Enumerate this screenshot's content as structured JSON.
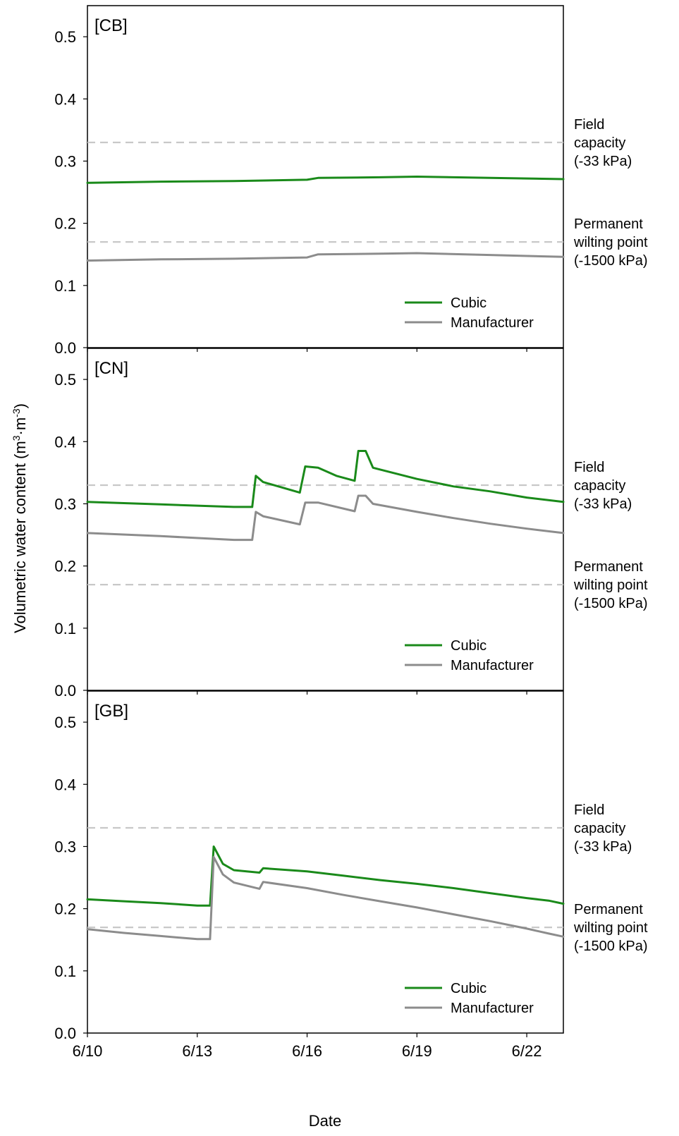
{
  "chart_data": {
    "type": "line",
    "xlabel": "Date",
    "ylabel_main": "Volumetric water content (m",
    "ylabel_sup1": "3",
    "ylabel_mid": "·m",
    "ylabel_sup2": "-3",
    "ylabel_end": ")",
    "xlim": [
      "6/10",
      "6/23"
    ],
    "ylim": [
      0.0,
      0.55
    ],
    "x_ticks": [
      "6/10",
      "6/13",
      "6/16",
      "6/19",
      "6/22"
    ],
    "y_ticks": [
      "0.0",
      "0.1",
      "0.2",
      "0.3",
      "0.4",
      "0.5"
    ],
    "colors": {
      "Cubic": "#1a8a1a",
      "Manufacturer": "#8c8c8c",
      "reference": "#c8c8c8"
    },
    "panels": [
      {
        "label": "[CB]",
        "reference_lines": [
          {
            "value": 0.33,
            "label": [
              "Field",
              "capacity",
              "(-33 kPa)"
            ]
          },
          {
            "value": 0.17,
            "label": [
              "Permanent",
              "wilting point",
              "(-1500 kPa)"
            ]
          }
        ],
        "series": [
          {
            "name": "Cubic",
            "points": [
              [
                "6/10",
                0.265
              ],
              [
                "6/12",
                0.267
              ],
              [
                "6/14",
                0.268
              ],
              [
                "6/16",
                0.27
              ],
              [
                "6/16.3",
                0.273
              ],
              [
                "6/18",
                0.274
              ],
              [
                "6/19",
                0.275
              ],
              [
                "6/21",
                0.273
              ],
              [
                "6/23",
                0.271
              ]
            ]
          },
          {
            "name": "Manufacturer",
            "points": [
              [
                "6/10",
                0.14
              ],
              [
                "6/12",
                0.142
              ],
              [
                "6/14",
                0.143
              ],
              [
                "6/16",
                0.145
              ],
              [
                "6/16.3",
                0.15
              ],
              [
                "6/18",
                0.151
              ],
              [
                "6/19",
                0.152
              ],
              [
                "6/21",
                0.149
              ],
              [
                "6/23",
                0.146
              ]
            ]
          }
        ]
      },
      {
        "label": "[CN]",
        "reference_lines": [
          {
            "value": 0.33,
            "label": [
              "Field",
              "capacity",
              "(-33 kPa)"
            ]
          },
          {
            "value": 0.17,
            "label": [
              "Permanent",
              "wilting point",
              "(-1500 kPa)"
            ]
          }
        ],
        "series": [
          {
            "name": "Cubic",
            "points": [
              [
                "6/10",
                0.303
              ],
              [
                "6/12",
                0.299
              ],
              [
                "6/14",
                0.295
              ],
              [
                "6/14.5",
                0.295
              ],
              [
                "6/14.6",
                0.345
              ],
              [
                "6/14.8",
                0.335
              ],
              [
                "6/15.8",
                0.318
              ],
              [
                "6/15.95",
                0.36
              ],
              [
                "6/16.3",
                0.358
              ],
              [
                "6/16.8",
                0.345
              ],
              [
                "6/17.3",
                0.337
              ],
              [
                "6/17.4",
                0.385
              ],
              [
                "6/17.6",
                0.385
              ],
              [
                "6/17.8",
                0.358
              ],
              [
                "6/19",
                0.34
              ],
              [
                "6/20",
                0.328
              ],
              [
                "6/21",
                0.32
              ],
              [
                "6/22",
                0.31
              ],
              [
                "6/23",
                0.303
              ]
            ]
          },
          {
            "name": "Manufacturer",
            "points": [
              [
                "6/10",
                0.253
              ],
              [
                "6/12",
                0.248
              ],
              [
                "6/14",
                0.242
              ],
              [
                "6/14.5",
                0.242
              ],
              [
                "6/14.6",
                0.287
              ],
              [
                "6/14.8",
                0.28
              ],
              [
                "6/15.8",
                0.267
              ],
              [
                "6/15.95",
                0.302
              ],
              [
                "6/16.3",
                0.302
              ],
              [
                "6/17.3",
                0.288
              ],
              [
                "6/17.4",
                0.313
              ],
              [
                "6/17.6",
                0.313
              ],
              [
                "6/17.8",
                0.3
              ],
              [
                "6/19",
                0.287
              ],
              [
                "6/20",
                0.277
              ],
              [
                "6/21",
                0.268
              ],
              [
                "6/22",
                0.26
              ],
              [
                "6/23",
                0.253
              ]
            ]
          }
        ]
      },
      {
        "label": "[GB]",
        "reference_lines": [
          {
            "value": 0.33,
            "label": [
              "Field",
              "capacity",
              "(-33 kPa)"
            ]
          },
          {
            "value": 0.17,
            "label": [
              "Permanent",
              "wilting point",
              "(-1500 kPa)"
            ]
          }
        ],
        "series": [
          {
            "name": "Cubic",
            "points": [
              [
                "6/10",
                0.215
              ],
              [
                "6/11",
                0.212
              ],
              [
                "6/12",
                0.209
              ],
              [
                "6/13",
                0.205
              ],
              [
                "6/13.35",
                0.205
              ],
              [
                "6/13.45",
                0.3
              ],
              [
                "6/13.7",
                0.272
              ],
              [
                "6/14",
                0.262
              ],
              [
                "6/14.7",
                0.258
              ],
              [
                "6/14.8",
                0.265
              ],
              [
                "6/16",
                0.26
              ],
              [
                "6/17",
                0.253
              ],
              [
                "6/18",
                0.246
              ],
              [
                "6/19",
                0.24
              ],
              [
                "6/20",
                0.233
              ],
              [
                "6/21",
                0.225
              ],
              [
                "6/22",
                0.217
              ],
              [
                "6/22.6",
                0.213
              ],
              [
                "6/23",
                0.208
              ]
            ]
          },
          {
            "name": "Manufacturer",
            "points": [
              [
                "6/10",
                0.167
              ],
              [
                "6/11",
                0.161
              ],
              [
                "6/12",
                0.156
              ],
              [
                "6/13",
                0.151
              ],
              [
                "6/13.35",
                0.151
              ],
              [
                "6/13.45",
                0.283
              ],
              [
                "6/13.7",
                0.255
              ],
              [
                "6/14",
                0.242
              ],
              [
                "6/14.7",
                0.232
              ],
              [
                "6/14.8",
                0.243
              ],
              [
                "6/16",
                0.233
              ],
              [
                "6/17",
                0.222
              ],
              [
                "6/18",
                0.212
              ],
              [
                "6/19",
                0.202
              ],
              [
                "6/20",
                0.191
              ],
              [
                "6/21",
                0.18
              ],
              [
                "6/22",
                0.168
              ],
              [
                "6/22.6",
                0.16
              ],
              [
                "6/23",
                0.155
              ]
            ]
          }
        ]
      }
    ]
  }
}
